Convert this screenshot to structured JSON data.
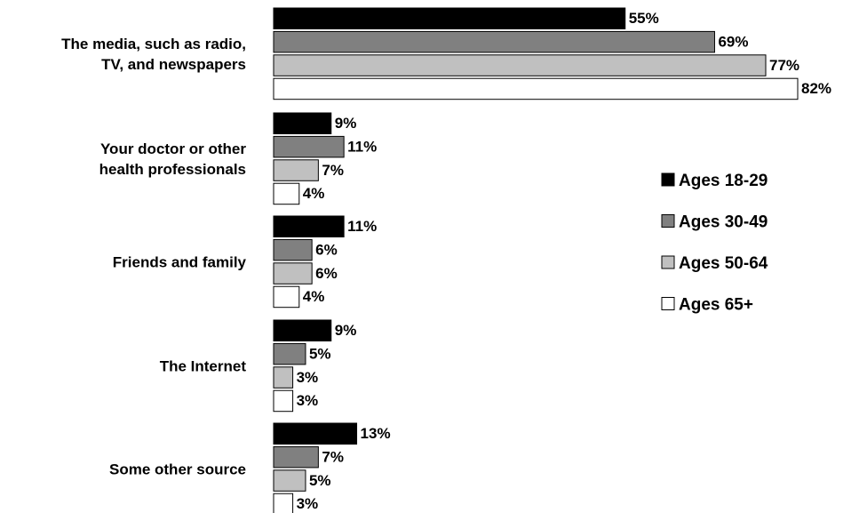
{
  "chart_data": {
    "type": "bar",
    "orientation": "horizontal",
    "categories": [
      [
        "The media, such as radio,",
        "TV, and newspapers"
      ],
      [
        "Your doctor or other",
        "health professionals"
      ],
      [
        "Friends and family"
      ],
      [
        "The Internet"
      ],
      [
        "Some other source"
      ]
    ],
    "series": [
      {
        "name": "Ages 18-29",
        "color": "#000000",
        "values": [
          55,
          9,
          11,
          9,
          13
        ]
      },
      {
        "name": "Ages 30-49",
        "color": "#808080",
        "values": [
          69,
          11,
          6,
          5,
          7
        ]
      },
      {
        "name": "Ages 50-64",
        "color": "#c0c0c0",
        "values": [
          77,
          7,
          6,
          3,
          5
        ]
      },
      {
        "name": "Ages 65+",
        "color": "#ffffff",
        "values": [
          82,
          4,
          4,
          3,
          3
        ]
      }
    ],
    "value_suffix": "%",
    "xlim": [
      0,
      100
    ],
    "grid": false,
    "legend_position": "right"
  }
}
